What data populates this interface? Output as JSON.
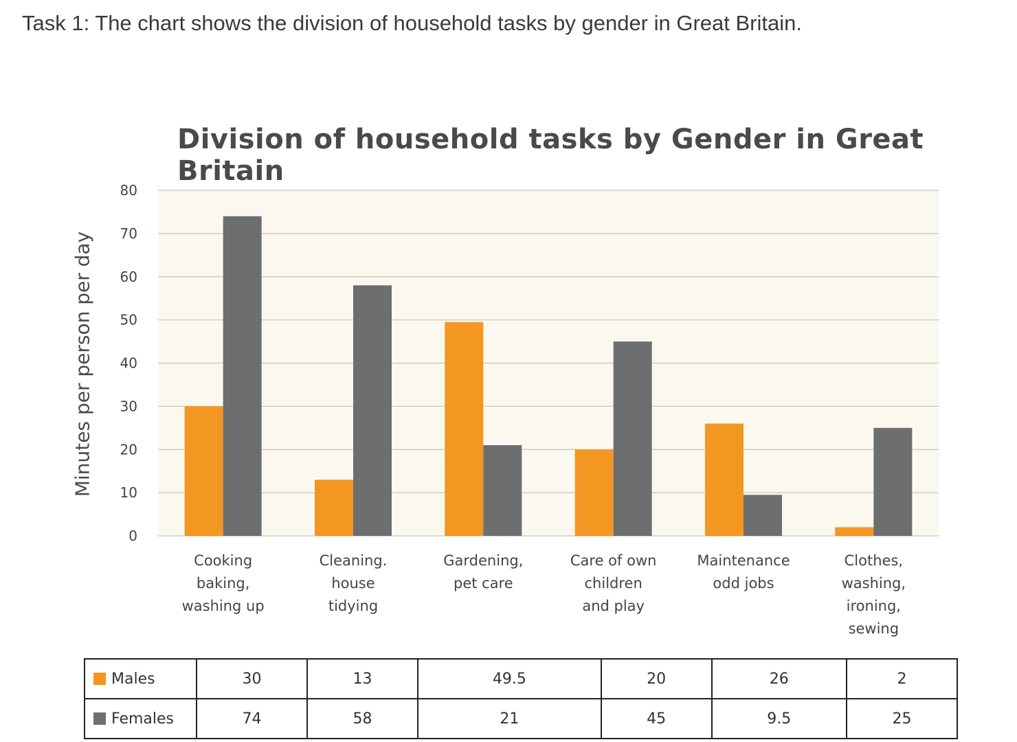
{
  "task_text": "Task 1: The chart shows the division of household tasks by gender in Great Britain.",
  "colors": {
    "males": "#F49622",
    "females": "#6D6E70",
    "plot_bg": "#FBF8EF",
    "grid": "#C9C5BA"
  },
  "chart_data": {
    "type": "bar",
    "title": "Division of household tasks by Gender in Great Britain",
    "ylabel": "Minutes per person per day",
    "xlabel": "",
    "ylim": [
      0,
      80
    ],
    "yticks": [
      0,
      10,
      20,
      30,
      40,
      50,
      60,
      70,
      80
    ],
    "grid": true,
    "categories": [
      "Cooking\nbaking,\nwashing up",
      "Cleaning.\nhouse\ntidying",
      "Gardening,\npet care",
      "Care of own\nchildren\nand play",
      "Maintenance\nodd jobs",
      "Clothes,\nwashing,\nironing,\nsewing"
    ],
    "series": [
      {
        "name": "Males",
        "values": [
          30,
          13,
          49.5,
          20,
          26,
          2
        ]
      },
      {
        "name": "Females",
        "values": [
          74,
          58,
          21,
          45,
          9.5,
          25
        ]
      }
    ],
    "table": {
      "rows": [
        {
          "label": "Males",
          "values": [
            "30",
            "13",
            "49.5",
            "20",
            "26",
            "2"
          ]
        },
        {
          "label": "Females",
          "values": [
            "74",
            "58",
            "21",
            "45",
            "9.5",
            "25"
          ]
        }
      ]
    }
  }
}
